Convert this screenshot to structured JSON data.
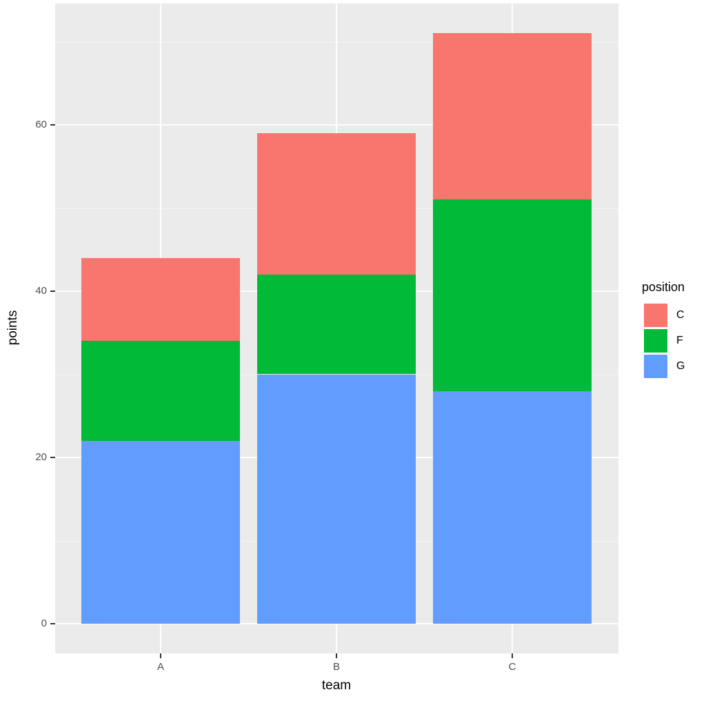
{
  "chart_data": {
    "type": "bar",
    "stacked": true,
    "title": "",
    "xlabel": "team",
    "ylabel": "points",
    "categories": [
      "A",
      "B",
      "C"
    ],
    "series": [
      {
        "name": "G",
        "color": "#619cff",
        "values": [
          22,
          30,
          28
        ]
      },
      {
        "name": "F",
        "color": "#00ba38",
        "values": [
          12,
          12,
          23
        ]
      },
      {
        "name": "C",
        "color": "#f8766d",
        "values": [
          10,
          17,
          20
        ]
      }
    ],
    "totals": [
      44,
      59,
      71
    ],
    "yticks": [
      "0",
      "20",
      "40",
      "60"
    ],
    "ylim": [
      -3.5,
      74.5
    ],
    "grid": true,
    "legend": {
      "title": "position",
      "position": "right",
      "entries": [
        {
          "label": "C",
          "color": "#f8766d"
        },
        {
          "label": "F",
          "color": "#00ba38"
        },
        {
          "label": "G",
          "color": "#619cff"
        }
      ]
    }
  }
}
